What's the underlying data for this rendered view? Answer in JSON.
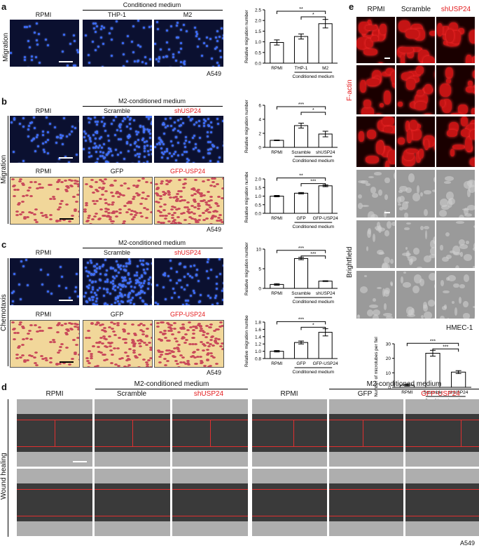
{
  "panel_letters": [
    "a",
    "b",
    "c",
    "d",
    "e"
  ],
  "common": {
    "rpmi": "RPMI",
    "scramble": "Scramble",
    "shusp24": "shUSP24",
    "gfp": "GFP",
    "gfp_usp24": "GFP-USP24",
    "thp1": "THP-1",
    "m2": "M2",
    "conditioned_medium": "Conditioned medium",
    "m2_conditioned_medium": "M2-conditioned medium",
    "a549": "A549",
    "hmec1": "HMEC-1",
    "migration": "Migration",
    "chemotaxis": "Chemotaxis",
    "wound_healing": "Wound healing",
    "f_actin": "F-actin",
    "brightfield": "Brightfield",
    "relative_migration_number": "Relative migration number",
    "number_of_microtubes": "Number of microtubes per field"
  },
  "colors": {
    "accent_red": "#e41a1c",
    "fluor_blue": "#3a6bff",
    "factin_red": "#c41414"
  },
  "chart_data": [
    {
      "panel": "a",
      "type": "bar",
      "categories": [
        "RPMI",
        "THP-1",
        "M2"
      ],
      "values": [
        0.97,
        1.25,
        1.85
      ],
      "errors": [
        0.12,
        0.12,
        0.2
      ],
      "ylabel": "Relative migration number",
      "ylim": [
        0,
        2.5
      ],
      "yticks": [
        "0.0",
        "0.5",
        "1.0",
        "1.5",
        "2.0",
        "2.5"
      ],
      "group_label": "Conditioned medium",
      "significance": [
        "**",
        "*"
      ]
    },
    {
      "panel": "b-top",
      "type": "bar",
      "categories": [
        "RPMI",
        "Scramble",
        "shUSP24"
      ],
      "values": [
        1.0,
        3.1,
        1.9
      ],
      "errors": [
        0.05,
        0.35,
        0.4
      ],
      "ylabel": "Relative migration number",
      "ylim": [
        0,
        6
      ],
      "yticks": [
        "0",
        "2",
        "4",
        "6"
      ],
      "group_label": "Conditioned medium",
      "significance": [
        "***",
        "*"
      ]
    },
    {
      "panel": "b-bottom",
      "type": "bar",
      "categories": [
        "RPMI",
        "GFP",
        "GFP-USP24"
      ],
      "values": [
        1.0,
        1.17,
        1.6
      ],
      "errors": [
        0.04,
        0.04,
        0.05
      ],
      "ylabel": "Relative migration number",
      "ylim": [
        0,
        2.0
      ],
      "yticks": [
        "0.0",
        "0.5",
        "1.0",
        "1.5",
        "2.0"
      ],
      "group_label": "Conditioned medium",
      "significance": [
        "**",
        "***"
      ]
    },
    {
      "panel": "c-top",
      "type": "bar",
      "categories": [
        "RPMI",
        "Scramble",
        "shUSP24"
      ],
      "values": [
        1.0,
        7.6,
        1.85
      ],
      "errors": [
        0.2,
        0.3,
        0.1
      ],
      "ylabel": "Relative migration number",
      "ylim": [
        0,
        10
      ],
      "yticks": [
        "0",
        "5",
        "10"
      ],
      "group_label": "Conditioned medium",
      "significance": [
        "***",
        "***"
      ]
    },
    {
      "panel": "c-bottom",
      "type": "bar",
      "categories": [
        "RPMI",
        "GFP",
        "GFP-USP24"
      ],
      "values": [
        1.0,
        1.24,
        1.52
      ],
      "errors": [
        0.02,
        0.04,
        0.1
      ],
      "ylabel": "Relative migration number",
      "ylim": [
        0.8,
        1.8
      ],
      "yticks": [
        "0.8",
        "1.0",
        "1.2",
        "1.4",
        "1.6",
        "1.8"
      ],
      "group_label": "Conditioned medium",
      "significance": [
        "***",
        "*"
      ]
    },
    {
      "panel": "e",
      "type": "bar",
      "categories": [
        "RPMI",
        "Scramble",
        "shUSP24"
      ],
      "values": [
        1.5,
        23.5,
        10.5
      ],
      "errors": [
        0.6,
        2.0,
        1.0
      ],
      "ylabel": "Number of microtubes per field",
      "ylim": [
        0,
        30
      ],
      "yticks": [
        "0",
        "10",
        "20",
        "30"
      ],
      "group_label": "Conditioned medium",
      "significance": [
        "***",
        "***"
      ]
    }
  ]
}
